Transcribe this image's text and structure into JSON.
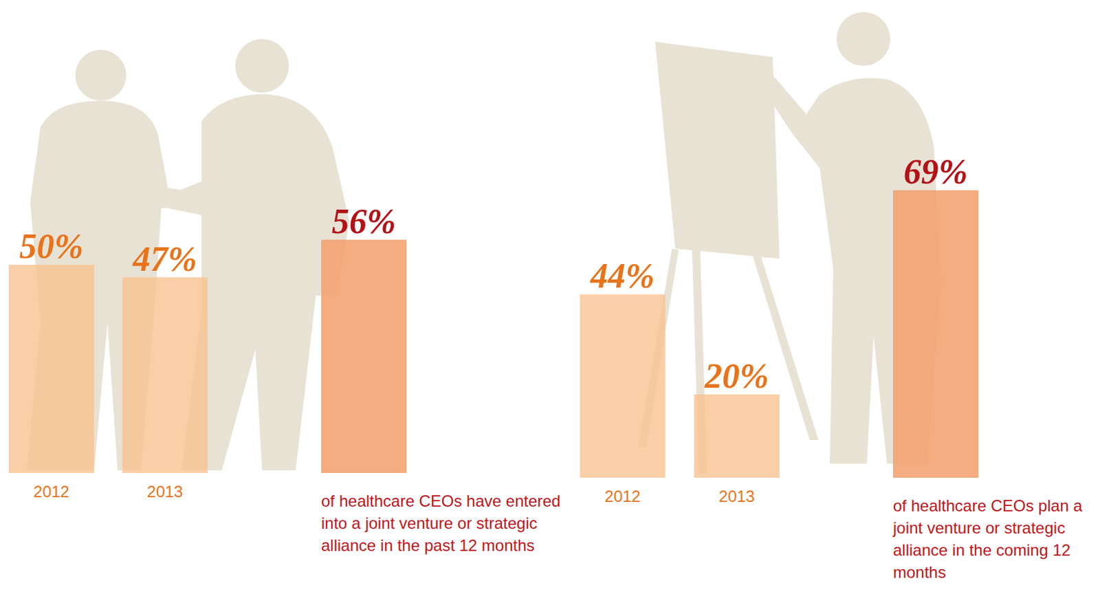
{
  "chart_data": [
    {
      "type": "bar",
      "categories": [
        "2012",
        "2013",
        null
      ],
      "values": [
        50,
        47,
        56
      ],
      "value_labels": [
        "50%",
        "47%",
        "56%"
      ],
      "data_labels": true,
      "colors": [
        "#f8c28e",
        "#f8c28e",
        "#f2a070"
      ],
      "ylim": [
        0,
        80
      ],
      "tick_labels": "x",
      "annotation": "of healthcare CEOs have entered into a joint venture or strategic alliance in the past 12 months"
    },
    {
      "type": "bar",
      "categories": [
        "2012",
        "2013",
        null
      ],
      "values": [
        44,
        20,
        69
      ],
      "value_labels": [
        "44%",
        "20%",
        "69%"
      ],
      "data_labels": true,
      "colors": [
        "#f8c28e",
        "#f8c28e",
        "#f2a070"
      ],
      "ylim": [
        0,
        80
      ],
      "tick_labels": "x",
      "annotation": "of healthcare CEOs plan a joint venture or strategic alliance in the coming 12 months"
    }
  ]
}
